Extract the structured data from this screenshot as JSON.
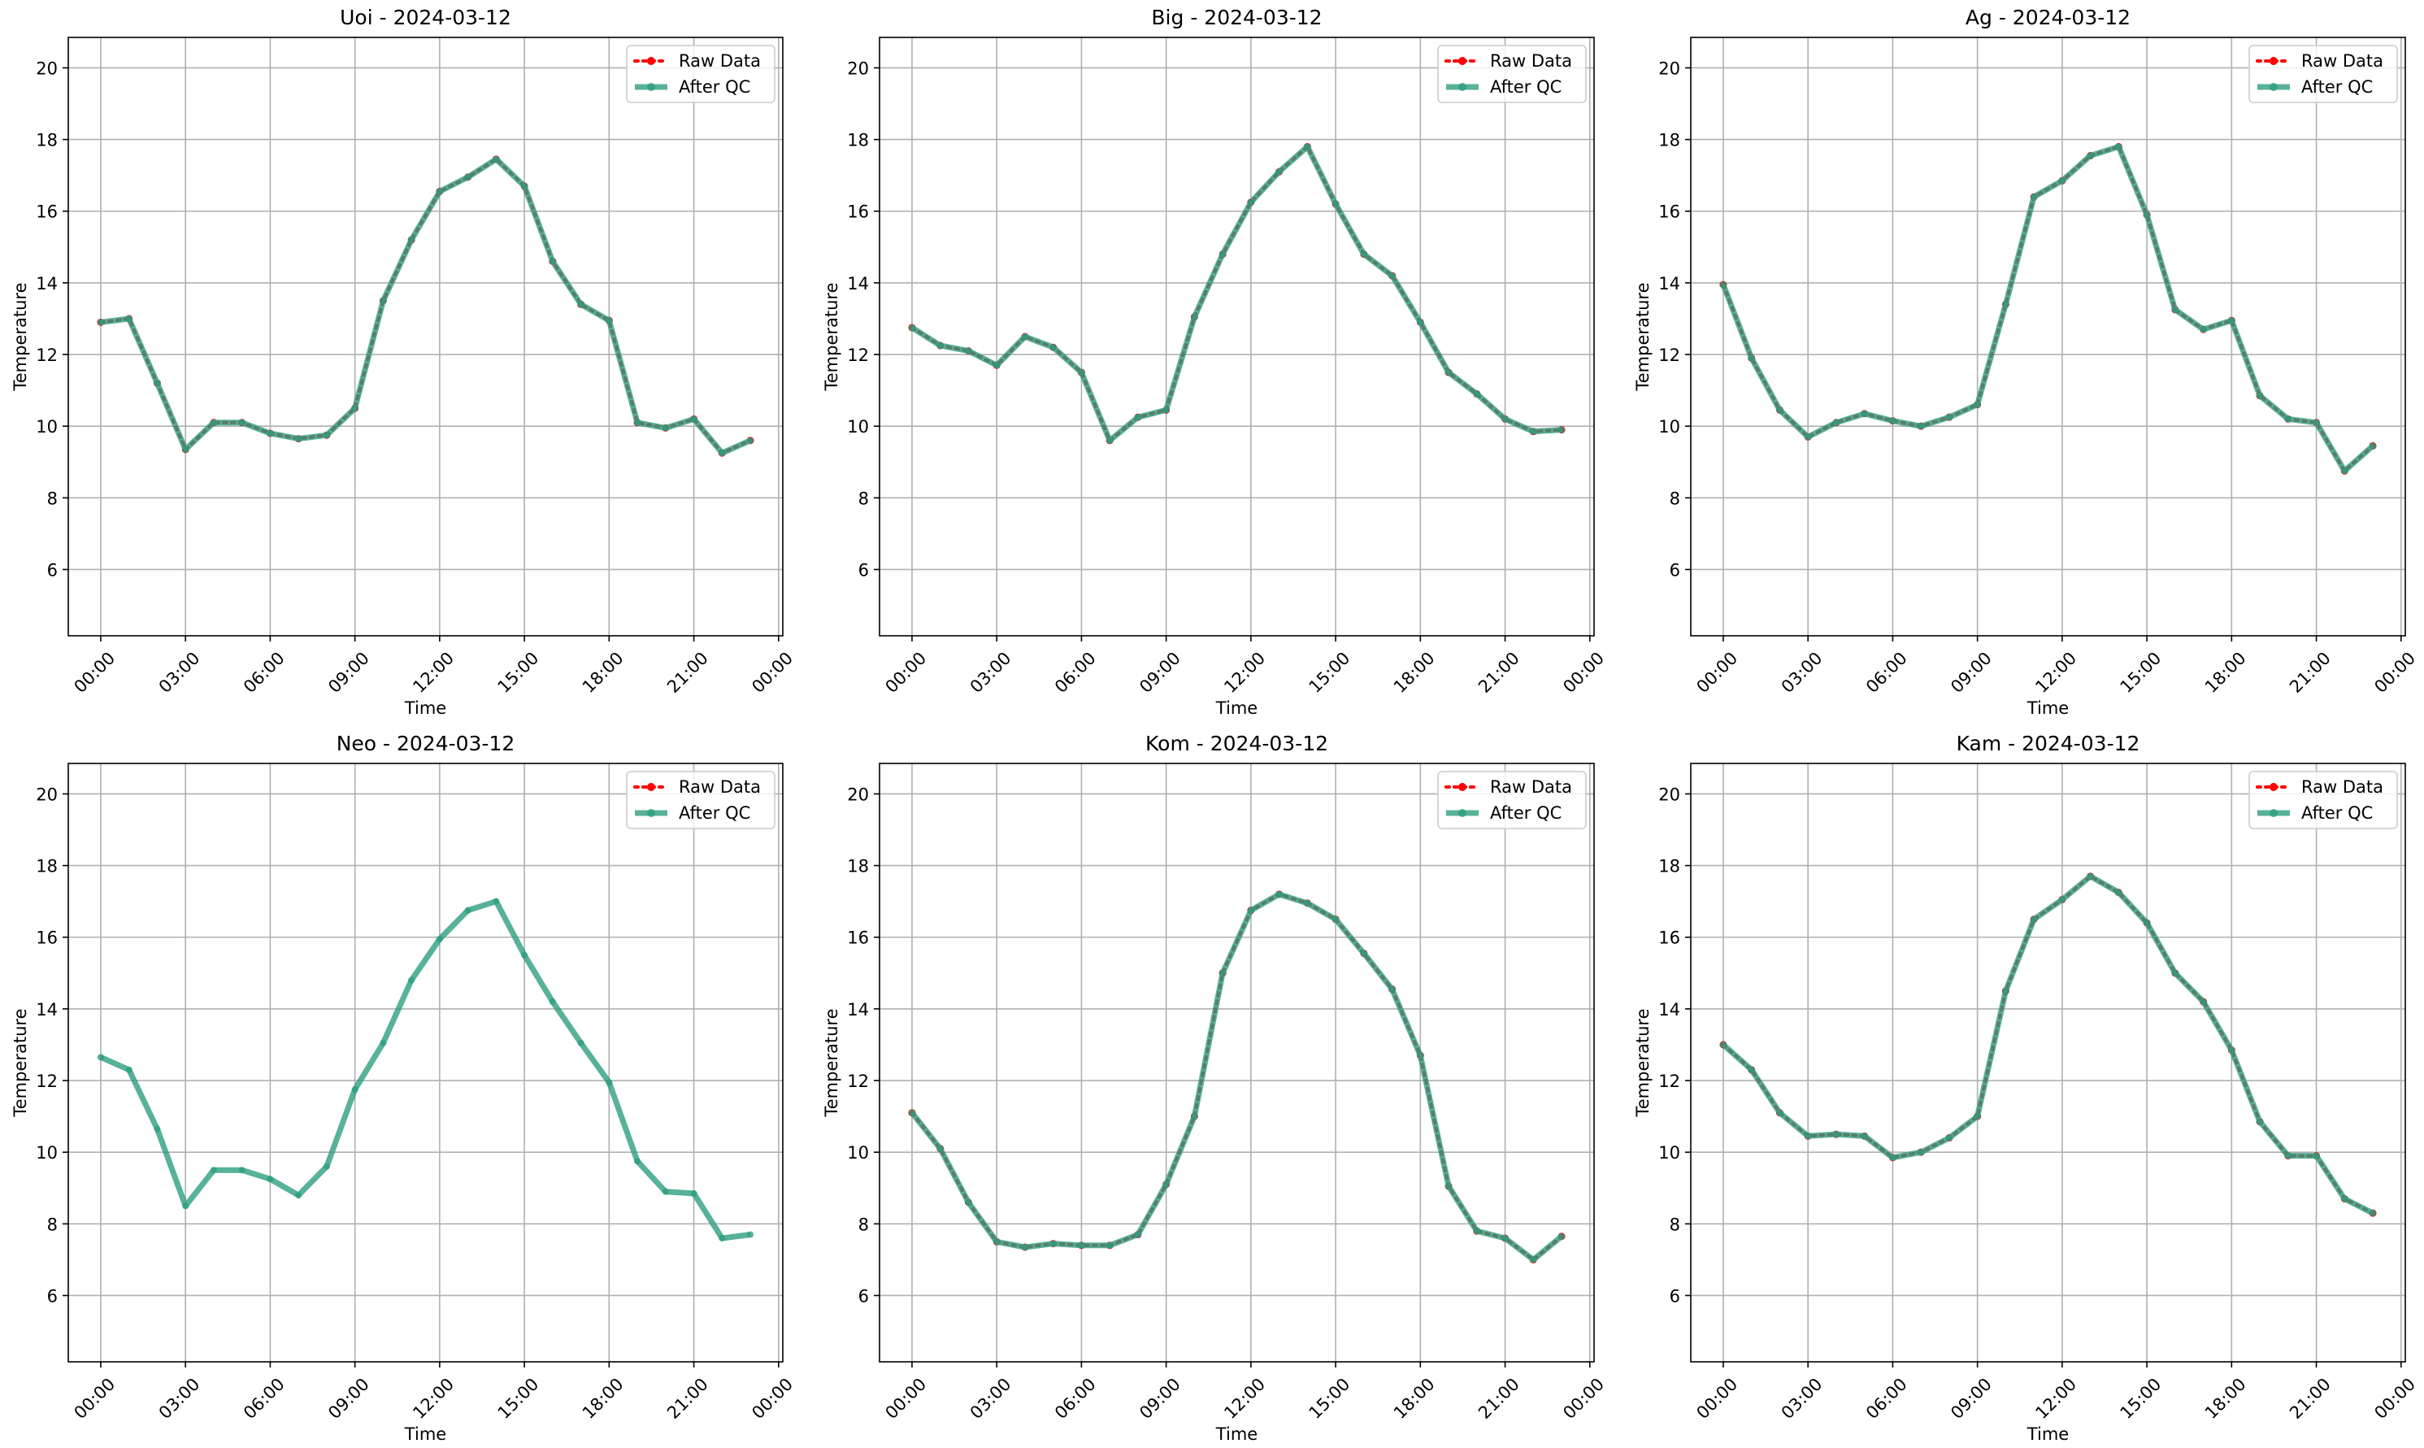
{
  "chart_data": [
    {
      "type": "line",
      "title": "Uoi - 2024-03-12",
      "xlabel": "Time",
      "ylabel": "Temperature",
      "x": [
        0,
        1,
        2,
        3,
        4,
        5,
        6,
        7,
        8,
        9,
        10,
        11,
        12,
        13,
        14,
        15,
        16,
        17,
        18,
        19,
        20,
        21,
        22,
        23
      ],
      "series": [
        {
          "name": "Raw Data",
          "color": "#ff0000",
          "values": [
            12.9,
            13.0,
            11.2,
            9.35,
            10.1,
            10.1,
            9.8,
            9.65,
            9.75,
            10.5,
            13.5,
            15.2,
            16.55,
            16.95,
            17.45,
            16.7,
            14.6,
            13.4,
            12.95,
            10.1,
            9.95,
            10.2,
            9.25,
            9.6
          ]
        },
        {
          "name": "After QC",
          "color": "#2e9e80",
          "values": [
            12.9,
            13.0,
            11.2,
            9.35,
            10.1,
            10.1,
            9.8,
            9.65,
            9.75,
            10.5,
            13.5,
            15.2,
            16.55,
            16.95,
            17.45,
            16.7,
            14.6,
            13.4,
            12.95,
            10.1,
            9.95,
            10.2,
            9.25,
            9.6
          ]
        }
      ],
      "xlim": [
        -1.15,
        24.15
      ],
      "xticks": [
        {
          "value": 0,
          "label": "00:00"
        },
        {
          "value": 3,
          "label": "03:00"
        },
        {
          "value": 6,
          "label": "06:00"
        },
        {
          "value": 9,
          "label": "09:00"
        },
        {
          "value": 12,
          "label": "12:00"
        },
        {
          "value": 15,
          "label": "15:00"
        },
        {
          "value": 18,
          "label": "18:00"
        },
        {
          "value": 21,
          "label": "21:00"
        },
        {
          "value": 24,
          "label": "00:00"
        }
      ],
      "ylim": [
        4.15,
        20.85
      ],
      "yticks": [
        6,
        8,
        10,
        12,
        14,
        16,
        18,
        20
      ],
      "grid": true,
      "legend": "upper right"
    },
    {
      "type": "line",
      "title": "Big - 2024-03-12",
      "xlabel": "Time",
      "ylabel": "Temperature",
      "x": [
        0,
        1,
        2,
        3,
        4,
        5,
        6,
        7,
        8,
        9,
        10,
        11,
        12,
        13,
        14,
        15,
        16,
        17,
        18,
        19,
        20,
        21,
        22,
        23
      ],
      "series": [
        {
          "name": "Raw Data",
          "color": "#ff0000",
          "values": [
            12.75,
            12.25,
            12.1,
            11.7,
            12.5,
            12.2,
            11.5,
            9.6,
            10.25,
            10.45,
            13.05,
            14.8,
            16.25,
            17.1,
            17.8,
            16.2,
            14.8,
            14.2,
            12.9,
            11.5,
            10.9,
            10.2,
            9.85,
            9.9
          ]
        },
        {
          "name": "After QC",
          "color": "#2e9e80",
          "values": [
            12.75,
            12.25,
            12.1,
            11.7,
            12.5,
            12.2,
            11.5,
            9.6,
            10.25,
            10.45,
            13.05,
            14.8,
            16.25,
            17.1,
            17.8,
            16.2,
            14.8,
            14.2,
            12.9,
            11.5,
            10.9,
            10.2,
            9.85,
            9.9
          ]
        }
      ],
      "xlim": [
        -1.15,
        24.15
      ],
      "xticks": [
        {
          "value": 0,
          "label": "00:00"
        },
        {
          "value": 3,
          "label": "03:00"
        },
        {
          "value": 6,
          "label": "06:00"
        },
        {
          "value": 9,
          "label": "09:00"
        },
        {
          "value": 12,
          "label": "12:00"
        },
        {
          "value": 15,
          "label": "15:00"
        },
        {
          "value": 18,
          "label": "18:00"
        },
        {
          "value": 21,
          "label": "21:00"
        },
        {
          "value": 24,
          "label": "00:00"
        }
      ],
      "ylim": [
        4.15,
        20.85
      ],
      "yticks": [
        6,
        8,
        10,
        12,
        14,
        16,
        18,
        20
      ],
      "grid": true,
      "legend": "upper right"
    },
    {
      "type": "line",
      "title": "Ag - 2024-03-12",
      "xlabel": "Time",
      "ylabel": "Temperature",
      "x": [
        0,
        1,
        2,
        3,
        4,
        5,
        6,
        7,
        8,
        9,
        10,
        11,
        12,
        13,
        14,
        15,
        16,
        17,
        18,
        19,
        20,
        21,
        22,
        23
      ],
      "series": [
        {
          "name": "Raw Data",
          "color": "#ff0000",
          "values": [
            13.95,
            11.9,
            10.45,
            9.7,
            10.1,
            10.35,
            10.15,
            10.0,
            10.25,
            10.6,
            13.4,
            16.4,
            16.85,
            17.55,
            17.8,
            15.9,
            13.25,
            12.7,
            12.95,
            10.85,
            10.2,
            10.1,
            8.75,
            9.45
          ]
        },
        {
          "name": "After QC",
          "color": "#2e9e80",
          "values": [
            13.95,
            11.9,
            10.45,
            9.7,
            10.1,
            10.35,
            10.15,
            10.0,
            10.25,
            10.6,
            13.4,
            16.4,
            16.85,
            17.55,
            17.8,
            15.9,
            13.25,
            12.7,
            12.95,
            10.85,
            10.2,
            10.1,
            8.75,
            9.45
          ]
        }
      ],
      "xlim": [
        -1.15,
        24.15
      ],
      "xticks": [
        {
          "value": 0,
          "label": "00:00"
        },
        {
          "value": 3,
          "label": "03:00"
        },
        {
          "value": 6,
          "label": "06:00"
        },
        {
          "value": 9,
          "label": "09:00"
        },
        {
          "value": 12,
          "label": "12:00"
        },
        {
          "value": 15,
          "label": "15:00"
        },
        {
          "value": 18,
          "label": "18:00"
        },
        {
          "value": 21,
          "label": "21:00"
        },
        {
          "value": 24,
          "label": "00:00"
        }
      ],
      "ylim": [
        4.15,
        20.85
      ],
      "yticks": [
        6,
        8,
        10,
        12,
        14,
        16,
        18,
        20
      ],
      "grid": true,
      "legend": "upper right"
    },
    {
      "type": "line",
      "title": "Neo - 2024-03-12",
      "xlabel": "Time",
      "ylabel": "Temperature",
      "x": [
        0,
        1,
        2,
        3,
        4,
        5,
        6,
        7,
        8,
        9,
        10,
        11,
        12,
        13,
        14,
        15,
        16,
        17,
        18,
        19,
        20,
        21,
        22,
        23
      ],
      "series": [
        {
          "name": "Raw Data",
          "color": "#ff0000",
          "values": [
            null,
            null,
            null,
            null,
            null,
            null,
            null,
            null,
            null,
            null,
            null,
            null,
            null,
            null,
            null,
            null,
            null,
            null,
            null,
            null,
            null,
            null,
            null,
            null
          ]
        },
        {
          "name": "After QC",
          "color": "#2e9e80",
          "values": [
            12.65,
            12.3,
            10.65,
            8.5,
            9.5,
            9.5,
            9.25,
            8.8,
            9.6,
            11.75,
            13.05,
            14.8,
            15.95,
            16.75,
            17.0,
            15.5,
            14.2,
            13.05,
            11.95,
            9.75,
            8.9,
            8.85,
            7.6,
            7.7
          ]
        }
      ],
      "xlim": [
        -1.15,
        24.15
      ],
      "xticks": [
        {
          "value": 0,
          "label": "00:00"
        },
        {
          "value": 3,
          "label": "03:00"
        },
        {
          "value": 6,
          "label": "06:00"
        },
        {
          "value": 9,
          "label": "09:00"
        },
        {
          "value": 12,
          "label": "12:00"
        },
        {
          "value": 15,
          "label": "15:00"
        },
        {
          "value": 18,
          "label": "18:00"
        },
        {
          "value": 21,
          "label": "21:00"
        },
        {
          "value": 24,
          "label": "00:00"
        }
      ],
      "ylim": [
        4.15,
        20.85
      ],
      "yticks": [
        6,
        8,
        10,
        12,
        14,
        16,
        18,
        20
      ],
      "grid": true,
      "legend": "upper right"
    },
    {
      "type": "line",
      "title": "Kom - 2024-03-12",
      "xlabel": "Time",
      "ylabel": "Temperature",
      "x": [
        0,
        1,
        2,
        3,
        4,
        5,
        6,
        7,
        8,
        9,
        10,
        11,
        12,
        13,
        14,
        15,
        16,
        17,
        18,
        19,
        20,
        21,
        22,
        23
      ],
      "series": [
        {
          "name": "Raw Data",
          "color": "#ff0000",
          "values": [
            11.1,
            10.1,
            8.6,
            7.5,
            7.35,
            7.45,
            7.4,
            7.4,
            7.7,
            9.1,
            11.0,
            15.0,
            16.75,
            17.2,
            16.95,
            16.5,
            15.55,
            14.55,
            12.7,
            9.05,
            7.8,
            7.6,
            7.0,
            7.65
          ]
        },
        {
          "name": "After QC",
          "color": "#2e9e80",
          "values": [
            11.1,
            10.1,
            8.6,
            7.5,
            7.35,
            7.45,
            7.4,
            7.4,
            7.7,
            9.1,
            11.0,
            15.0,
            16.75,
            17.2,
            16.95,
            16.5,
            15.55,
            14.55,
            12.7,
            9.05,
            7.8,
            7.6,
            7.0,
            7.65
          ]
        }
      ],
      "xlim": [
        -1.15,
        24.15
      ],
      "xticks": [
        {
          "value": 0,
          "label": "00:00"
        },
        {
          "value": 3,
          "label": "03:00"
        },
        {
          "value": 6,
          "label": "06:00"
        },
        {
          "value": 9,
          "label": "09:00"
        },
        {
          "value": 12,
          "label": "12:00"
        },
        {
          "value": 15,
          "label": "15:00"
        },
        {
          "value": 18,
          "label": "18:00"
        },
        {
          "value": 21,
          "label": "21:00"
        },
        {
          "value": 24,
          "label": "00:00"
        }
      ],
      "ylim": [
        4.15,
        20.85
      ],
      "yticks": [
        6,
        8,
        10,
        12,
        14,
        16,
        18,
        20
      ],
      "grid": true,
      "legend": "upper right"
    },
    {
      "type": "line",
      "title": "Kam - 2024-03-12",
      "xlabel": "Time",
      "ylabel": "Temperature",
      "x": [
        0,
        1,
        2,
        3,
        4,
        5,
        6,
        7,
        8,
        9,
        10,
        11,
        12,
        13,
        14,
        15,
        16,
        17,
        18,
        19,
        20,
        21,
        22,
        23
      ],
      "series": [
        {
          "name": "Raw Data",
          "color": "#ff0000",
          "values": [
            13.0,
            12.3,
            11.1,
            10.45,
            10.5,
            10.45,
            9.85,
            10.0,
            10.4,
            11.0,
            14.5,
            16.5,
            17.05,
            17.7,
            17.25,
            16.4,
            15.0,
            14.2,
            12.85,
            10.85,
            9.9,
            9.9,
            8.7,
            8.3
          ]
        },
        {
          "name": "After QC",
          "color": "#2e9e80",
          "values": [
            13.0,
            12.3,
            11.1,
            10.45,
            10.5,
            10.45,
            9.85,
            10.0,
            10.4,
            11.0,
            14.5,
            16.5,
            17.05,
            17.7,
            17.25,
            16.4,
            15.0,
            14.2,
            12.85,
            10.85,
            9.9,
            9.9,
            8.7,
            8.3
          ]
        }
      ],
      "xlim": [
        -1.15,
        24.15
      ],
      "xticks": [
        {
          "value": 0,
          "label": "00:00"
        },
        {
          "value": 3,
          "label": "03:00"
        },
        {
          "value": 6,
          "label": "06:00"
        },
        {
          "value": 9,
          "label": "09:00"
        },
        {
          "value": 12,
          "label": "12:00"
        },
        {
          "value": 15,
          "label": "15:00"
        },
        {
          "value": 18,
          "label": "18:00"
        },
        {
          "value": 21,
          "label": "21:00"
        },
        {
          "value": 24,
          "label": "00:00"
        }
      ],
      "ylim": [
        4.15,
        20.85
      ],
      "yticks": [
        6,
        8,
        10,
        12,
        14,
        16,
        18,
        20
      ],
      "grid": true,
      "legend": "upper right"
    }
  ]
}
